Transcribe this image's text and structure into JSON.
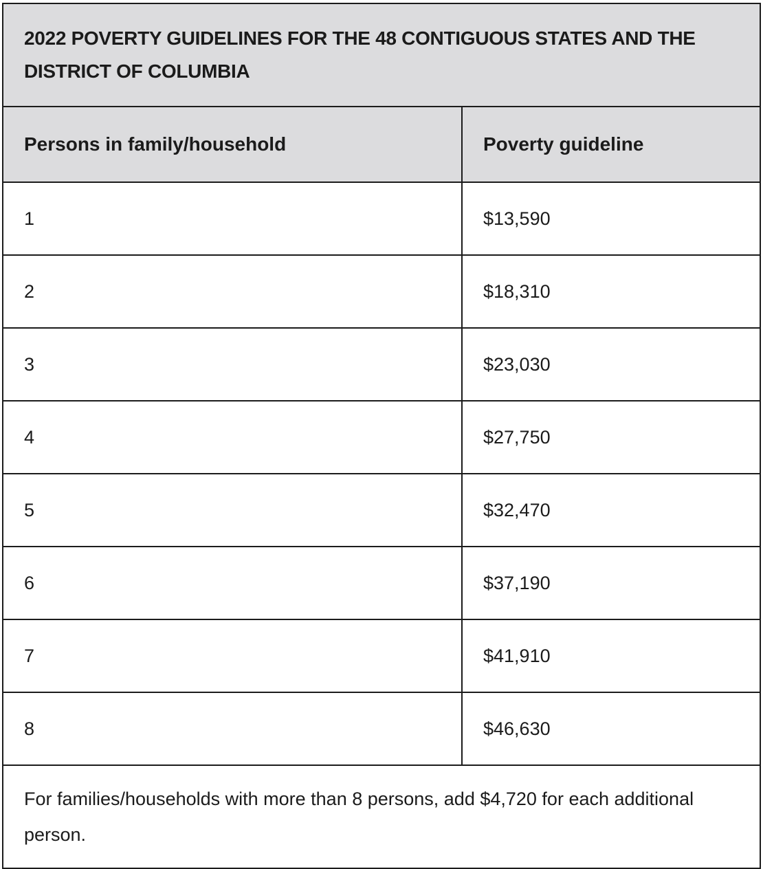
{
  "table": {
    "title": "2022 POVERTY GUIDELINES FOR THE 48 CONTIGUOUS STATES AND THE DISTRICT OF COLUMBIA",
    "columns": [
      "Persons in family/household",
      "Poverty guideline"
    ],
    "rows": [
      {
        "persons": "1",
        "guideline": "$13,590"
      },
      {
        "persons": "2",
        "guideline": "$18,310"
      },
      {
        "persons": "3",
        "guideline": "$23,030"
      },
      {
        "persons": "4",
        "guideline": "$27,750"
      },
      {
        "persons": "5",
        "guideline": "$32,470"
      },
      {
        "persons": "6",
        "guideline": "$37,190"
      },
      {
        "persons": "7",
        "guideline": "$41,910"
      },
      {
        "persons": "8",
        "guideline": "$46,630"
      }
    ],
    "footnote": "For families/households with more than 8 persons, add $4,720 for each additional person."
  },
  "colors": {
    "header_bg": "#dcdcde",
    "border": "#1b1b1b",
    "text": "#1b1b1b",
    "row_bg": "#ffffff"
  }
}
